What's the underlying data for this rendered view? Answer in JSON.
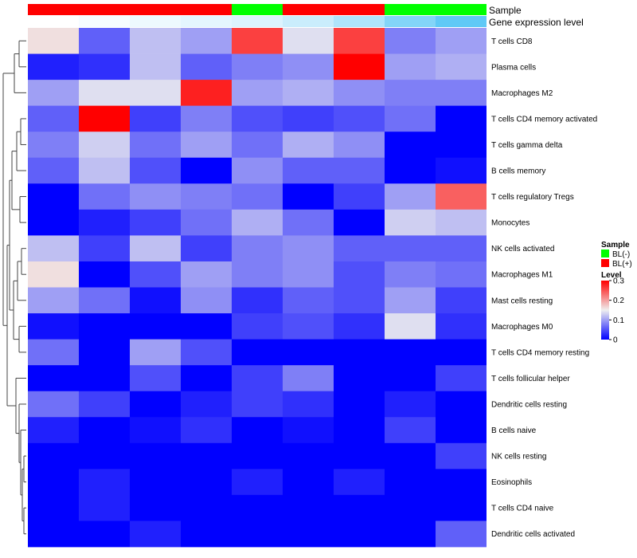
{
  "chart_data": {
    "type": "heatmap",
    "title": "",
    "xlabel": "",
    "ylabel": "",
    "annotation_tracks": [
      {
        "name": "Sample",
        "values": [
          "BL(+)",
          "BL(+)",
          "BL(+)",
          "BL(+)",
          "BL(-)",
          "BL(+)",
          "BL(+)",
          "BL(-)",
          "BL(-)"
        ]
      },
      {
        "name": "Gene expression level",
        "values": [
          0.0,
          0.05,
          0.1,
          0.15,
          0.2,
          0.3,
          0.45,
          0.7,
          0.9
        ]
      }
    ],
    "rows": [
      "T cells CD8",
      "Plasma cells",
      "Macrophages M2",
      "T cells CD4 memory activated",
      "T cells gamma delta",
      "B cells memory",
      "T cells regulatory  Tregs",
      "Monocytes",
      "NK cells activated",
      "Macrophages M1",
      "Mast cells resting",
      "Macrophages M0",
      "T cells CD4 memory resting",
      "T cells follicular helper",
      "Dendritic cells resting",
      "B cells naive",
      "NK cells resting",
      "Eosinophils",
      "T cells CD4 naive",
      "Dendritic cells activated"
    ],
    "values": [
      [
        0.16,
        0.06,
        0.12,
        0.1,
        0.26,
        0.14,
        0.26,
        0.08,
        0.1
      ],
      [
        0.02,
        0.03,
        0.12,
        0.06,
        0.08,
        0.09,
        0.3,
        0.1,
        0.11
      ],
      [
        0.1,
        0.14,
        0.14,
        0.28,
        0.1,
        0.11,
        0.09,
        0.08,
        0.08
      ],
      [
        0.06,
        0.3,
        0.04,
        0.08,
        0.05,
        0.04,
        0.05,
        0.07,
        0.0
      ],
      [
        0.08,
        0.13,
        0.07,
        0.1,
        0.07,
        0.11,
        0.09,
        0.0,
        0.0
      ],
      [
        0.06,
        0.12,
        0.05,
        0.0,
        0.09,
        0.06,
        0.06,
        0.0,
        0.01
      ],
      [
        0.0,
        0.07,
        0.09,
        0.08,
        0.07,
        0.0,
        0.04,
        0.1,
        0.24
      ],
      [
        0.0,
        0.02,
        0.04,
        0.07,
        0.11,
        0.07,
        0.0,
        0.13,
        0.12
      ],
      [
        0.12,
        0.04,
        0.12,
        0.04,
        0.08,
        0.09,
        0.06,
        0.06,
        0.06
      ],
      [
        0.16,
        0.0,
        0.05,
        0.1,
        0.08,
        0.09,
        0.05,
        0.08,
        0.07
      ],
      [
        0.1,
        0.07,
        0.01,
        0.09,
        0.03,
        0.06,
        0.05,
        0.1,
        0.04
      ],
      [
        0.01,
        0.0,
        0.0,
        0.0,
        0.04,
        0.05,
        0.03,
        0.14,
        0.03
      ],
      [
        0.07,
        0.0,
        0.1,
        0.05,
        0.0,
        0.0,
        0.0,
        0.0,
        0.0
      ],
      [
        0.0,
        0.0,
        0.05,
        0.0,
        0.04,
        0.08,
        0.0,
        0.0,
        0.04
      ],
      [
        0.07,
        0.04,
        0.0,
        0.02,
        0.04,
        0.03,
        0.0,
        0.02,
        0.0
      ],
      [
        0.02,
        0.0,
        0.01,
        0.03,
        0.0,
        0.01,
        0.0,
        0.04,
        0.0
      ],
      [
        0.0,
        0.0,
        0.0,
        0.0,
        0.0,
        0.0,
        0.0,
        0.0,
        0.04
      ],
      [
        0.0,
        0.02,
        0.0,
        0.0,
        0.02,
        0.0,
        0.02,
        0.0,
        0.0
      ],
      [
        0.0,
        0.02,
        0.0,
        0.0,
        0.0,
        0.0,
        0.0,
        0.0,
        0.0
      ],
      [
        0.0,
        0.0,
        0.02,
        0.0,
        0.0,
        0.0,
        0.0,
        0.0,
        0.06
      ]
    ],
    "color_scale": {
      "range": [
        0,
        0.3
      ],
      "colors": [
        "#0000ff",
        "#efefef",
        "#ff0000"
      ]
    },
    "dendrogram": "rows",
    "legend": {
      "placement": "right",
      "sample_title": "Sample",
      "sample_items": [
        {
          "label": "BL(-)",
          "color": "#00ff00"
        },
        {
          "label": "BL(+)",
          "color": "#ff0000"
        }
      ],
      "level_title": "Level",
      "level_ticks": [
        "0.3",
        "0.2",
        "0.1",
        "0"
      ],
      "level_tick_values": [
        0.3,
        0.2,
        0.1,
        0
      ]
    },
    "annotation_colors": {
      "BL(-)": "#00ff00",
      "BL(+)": "#ff0000",
      "expr_low": "#ffffff",
      "expr_high": "#4ec3f5"
    }
  }
}
